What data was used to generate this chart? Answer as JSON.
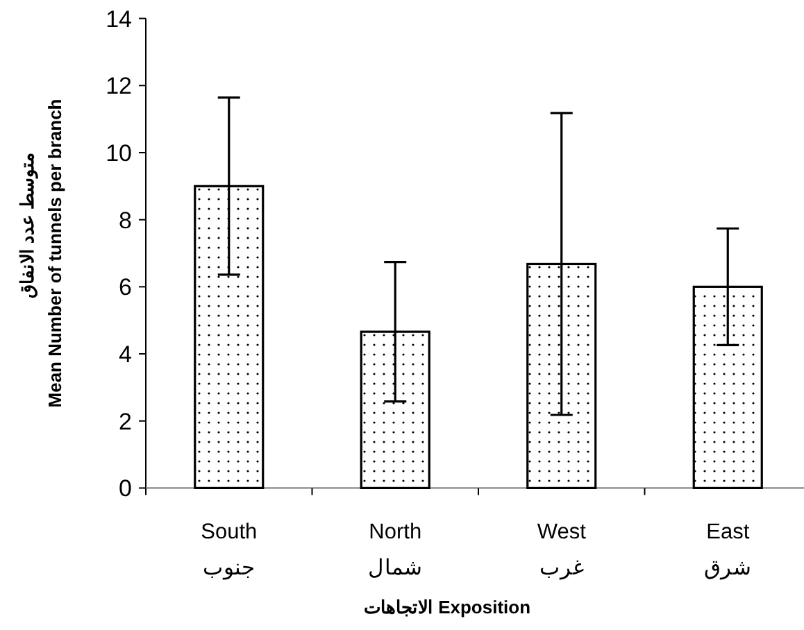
{
  "chart_data": {
    "type": "bar",
    "categories": [
      "South\nجنوب",
      "North\nشمال",
      "West\nغرب",
      "East\nشرق"
    ],
    "values": [
      9.0,
      4.66,
      6.68,
      6.0
    ],
    "errors": [
      2.64,
      2.08,
      4.5,
      1.74
    ],
    "color": "#000000",
    "xlabel": "الاتجاهات Exposition",
    "ylabel": "متوسط عدد الانفاق\nMean Number of tunnels per branch",
    "ylim": [
      0,
      14
    ],
    "yticks": [
      0,
      2,
      4,
      6,
      8,
      10,
      12,
      14
    ],
    "grid": false
  }
}
